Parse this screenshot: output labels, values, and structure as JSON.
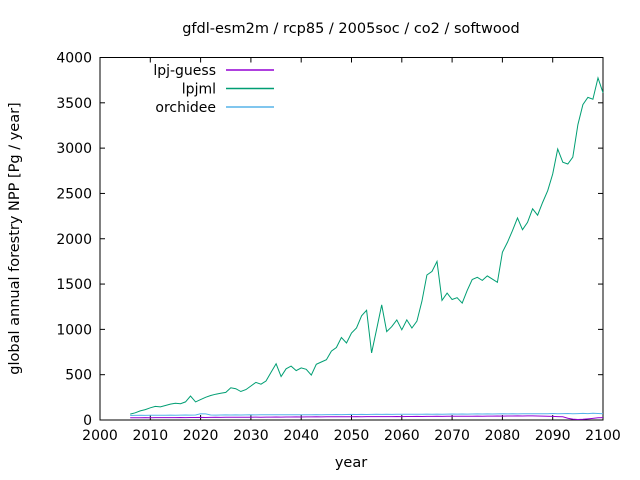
{
  "chart_data": {
    "type": "line",
    "title": "gfdl-esm2m / rcp85 / 2005soc / co2 / softwood",
    "xlabel": "year",
    "ylabel": "global annual forestry NPP [Pg / year]",
    "xlim": [
      2000,
      2100
    ],
    "ylim": [
      0,
      4000
    ],
    "xticks": [
      2000,
      2010,
      2020,
      2030,
      2040,
      2050,
      2060,
      2070,
      2080,
      2090,
      2100
    ],
    "yticks": [
      0,
      500,
      1000,
      1500,
      2000,
      2500,
      3000,
      3500,
      4000
    ],
    "grid": false,
    "legend_position": "inside-top-left",
    "background_color": "#ffffff",
    "axis_color": "#000000",
    "x": [
      2006,
      2007,
      2008,
      2009,
      2010,
      2011,
      2012,
      2013,
      2014,
      2015,
      2016,
      2017,
      2018,
      2019,
      2020,
      2021,
      2022,
      2023,
      2024,
      2025,
      2026,
      2027,
      2028,
      2029,
      2030,
      2031,
      2032,
      2033,
      2034,
      2035,
      2036,
      2037,
      2038,
      2039,
      2040,
      2041,
      2042,
      2043,
      2044,
      2045,
      2046,
      2047,
      2048,
      2049,
      2050,
      2051,
      2052,
      2053,
      2054,
      2055,
      2056,
      2057,
      2058,
      2059,
      2060,
      2061,
      2062,
      2063,
      2064,
      2065,
      2066,
      2067,
      2068,
      2069,
      2070,
      2071,
      2072,
      2073,
      2074,
      2075,
      2076,
      2077,
      2078,
      2079,
      2080,
      2081,
      2082,
      2083,
      2084,
      2085,
      2086,
      2087,
      2088,
      2089,
      2090,
      2091,
      2092,
      2093,
      2094,
      2095,
      2096,
      2097,
      2098,
      2099,
      2100
    ],
    "series": [
      {
        "name": "lpj-guess",
        "color": "#9400d3",
        "values": [
          24,
          25,
          25,
          26,
          25,
          26,
          27,
          26,
          27,
          27,
          28,
          27,
          28,
          28,
          29,
          28,
          29,
          30,
          29,
          30,
          30,
          31,
          30,
          31,
          31,
          32,
          31,
          32,
          32,
          33,
          32,
          33,
          33,
          34,
          33,
          34,
          34,
          35,
          34,
          35,
          35,
          36,
          35,
          36,
          36,
          37,
          36,
          37,
          37,
          38,
          37,
          38,
          38,
          39,
          38,
          39,
          39,
          40,
          39,
          40,
          40,
          41,
          40,
          41,
          41,
          42,
          41,
          42,
          42,
          43,
          42,
          43,
          43,
          44,
          43,
          44,
          44,
          45,
          44,
          45,
          45,
          44,
          43,
          42,
          40,
          38,
          35,
          20,
          10,
          6,
          8,
          12,
          18,
          24,
          26
        ]
      },
      {
        "name": "lpjml",
        "color": "#009e73",
        "values": [
          65,
          80,
          100,
          115,
          135,
          150,
          145,
          160,
          175,
          185,
          180,
          200,
          265,
          200,
          225,
          250,
          270,
          285,
          295,
          305,
          355,
          345,
          315,
          335,
          375,
          415,
          395,
          430,
          525,
          620,
          480,
          565,
          595,
          545,
          575,
          560,
          495,
          615,
          640,
          665,
          760,
          800,
          910,
          850,
          960,
          1015,
          1150,
          1210,
          740,
          1000,
          1270,
          975,
          1030,
          1105,
          995,
          1105,
          1015,
          1090,
          1310,
          1600,
          1640,
          1750,
          1320,
          1400,
          1330,
          1350,
          1290,
          1430,
          1550,
          1575,
          1540,
          1590,
          1555,
          1520,
          1850,
          1960,
          2090,
          2230,
          2100,
          2180,
          2330,
          2260,
          2400,
          2530,
          2715,
          2990,
          2845,
          2825,
          2900,
          3260,
          3480,
          3560,
          3540,
          3775,
          3610
        ]
      },
      {
        "name": "orchidee",
        "color": "#56b4e9",
        "values": [
          50,
          51,
          52,
          51,
          52,
          53,
          52,
          53,
          54,
          53,
          54,
          55,
          54,
          55,
          68,
          67,
          55,
          54,
          55,
          56,
          55,
          56,
          55,
          56,
          57,
          56,
          57,
          58,
          57,
          58,
          57,
          58,
          59,
          58,
          59,
          58,
          59,
          60,
          59,
          60,
          60,
          61,
          60,
          61,
          62,
          61,
          62,
          61,
          62,
          63,
          62,
          63,
          62,
          63,
          64,
          63,
          64,
          63,
          64,
          65,
          64,
          65,
          64,
          65,
          66,
          65,
          66,
          65,
          66,
          67,
          66,
          67,
          66,
          67,
          68,
          67,
          68,
          67,
          68,
          69,
          68,
          69,
          68,
          69,
          72,
          70,
          71,
          72,
          70,
          71,
          73,
          71,
          74,
          72,
          70
        ]
      }
    ]
  }
}
